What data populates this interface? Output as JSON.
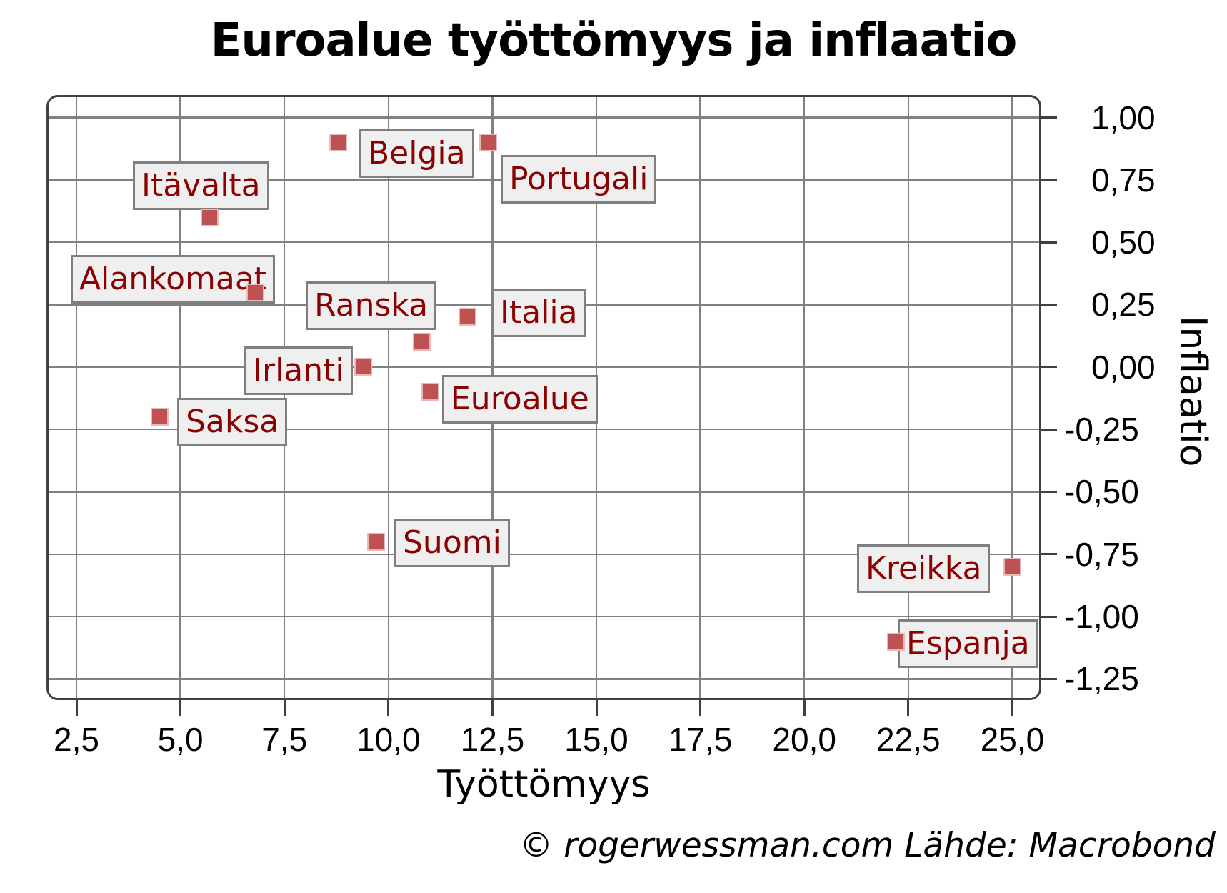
{
  "title": "Euroalue työttömyys ja inflaatio",
  "x_axis_title": "Työttömyys",
  "y_axis_title": "Inflaatio",
  "attribution": "© rogerwessman.com Lähde: Macrobond",
  "colors": {
    "marker_fill": "#bf5152",
    "marker_edge": "#e6bab8",
    "label_text": "#8b0000",
    "label_bg": "#efefef",
    "label_border": "#7f7f7f",
    "gridline": "#818181",
    "frame": "#414144",
    "text": "#000000"
  },
  "chart_data": {
    "type": "scatter",
    "title": "Euroalue työttömyys ja inflaatio",
    "xlabel": "Työttömyys",
    "ylabel": "Inflaatio",
    "xlim": [
      1.8,
      25.7
    ],
    "ylim": [
      -1.33,
      1.09
    ],
    "grid": true,
    "x_ticks": [
      {
        "value": 2.5,
        "label": "2,5"
      },
      {
        "value": 5.0,
        "label": "5,0"
      },
      {
        "value": 7.5,
        "label": "7,5"
      },
      {
        "value": 10.0,
        "label": "10,0"
      },
      {
        "value": 12.5,
        "label": "12,5"
      },
      {
        "value": 15.0,
        "label": "15,0"
      },
      {
        "value": 17.5,
        "label": "17,5"
      },
      {
        "value": 20.0,
        "label": "20,0"
      },
      {
        "value": 22.5,
        "label": "22,5"
      },
      {
        "value": 25.0,
        "label": "25,0"
      }
    ],
    "y_ticks": [
      {
        "value": 1.0,
        "label": "1,00"
      },
      {
        "value": 0.75,
        "label": "0,75"
      },
      {
        "value": 0.5,
        "label": "0,50"
      },
      {
        "value": 0.25,
        "label": "0,25"
      },
      {
        "value": 0.0,
        "label": "0,00"
      },
      {
        "value": -0.25,
        "label": "-0,25"
      },
      {
        "value": -0.5,
        "label": "-0,50"
      },
      {
        "value": -0.75,
        "label": "-0,75"
      },
      {
        "value": -1.0,
        "label": "-1,00"
      },
      {
        "value": -1.25,
        "label": "-1,25"
      }
    ],
    "points": [
      {
        "name": "Itävalta",
        "x": 5.7,
        "y": 0.6
      },
      {
        "name": "Belgia",
        "x": 8.8,
        "y": 0.9
      },
      {
        "name": "Portugali",
        "x": 12.4,
        "y": 0.9
      },
      {
        "name": "Alankomaat",
        "x": 6.8,
        "y": 0.3
      },
      {
        "name": "Ranska",
        "x": 10.8,
        "y": 0.1
      },
      {
        "name": "Italia",
        "x": 11.9,
        "y": 0.2
      },
      {
        "name": "Irlanti",
        "x": 9.4,
        "y": 0.0
      },
      {
        "name": "Euroalue",
        "x": 11.0,
        "y": -0.1
      },
      {
        "name": "Saksa",
        "x": 4.5,
        "y": -0.2
      },
      {
        "name": "Suomi",
        "x": 9.7,
        "y": -0.7
      },
      {
        "name": "Kreikka",
        "x": 25.0,
        "y": -0.8
      },
      {
        "name": "Espanja",
        "x": 22.2,
        "y": -1.1
      }
    ]
  }
}
